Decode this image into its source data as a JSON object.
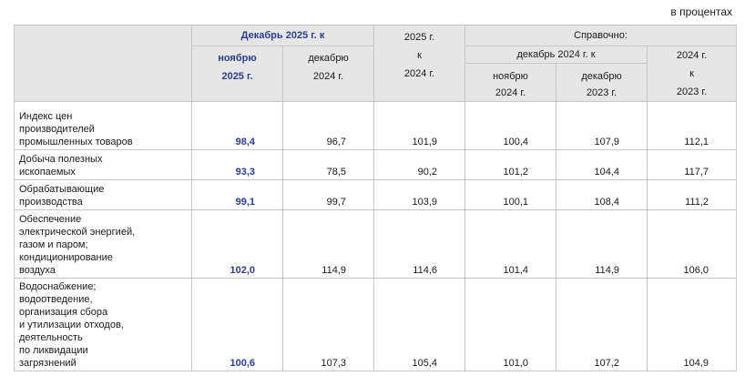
{
  "units_note": "в процентах",
  "header": {
    "group_dec2025": "Декабрь 2025 г. к",
    "col_nov2025": [
      "ноябрю",
      "2025 г."
    ],
    "col_dec2024": [
      "декабрю",
      "2024 г."
    ],
    "col_2025_vs_2024": [
      "2025 г.",
      "к",
      "2024 г."
    ],
    "group_ref": "Справочно:",
    "subgroup_dec2024": "декабрь 2024 г. к",
    "col_nov2024": [
      "ноябрю",
      "2024 г."
    ],
    "col_dec2023": [
      "декабрю",
      "2023 г."
    ],
    "col_2024_vs_2023": [
      "2024 г.",
      "к",
      "2023 г."
    ]
  },
  "rows": [
    {
      "label": [
        "Индекс цен",
        "производителей",
        "промышленных товаров"
      ],
      "values": [
        "98,4",
        "96,7",
        "101,9",
        "100,4",
        "107,9",
        "112,1"
      ]
    },
    {
      "label": [
        "Добыча полезных",
        "ископаемых"
      ],
      "values": [
        "93,3",
        "78,5",
        "90,2",
        "101,2",
        "104,4",
        "117,7"
      ]
    },
    {
      "label": [
        "Обрабатывающие",
        "производства"
      ],
      "values": [
        "99,1",
        "99,7",
        "103,9",
        "100,1",
        "108,4",
        "111,2"
      ]
    },
    {
      "label": [
        "Обеспечение",
        "электрической энергией,",
        "газом и паром;",
        "кондиционирование",
        "воздуха"
      ],
      "values": [
        "102,0",
        "114,9",
        "114,6",
        "101,4",
        "114,9",
        "106,0"
      ]
    },
    {
      "label": [
        "Водоснабжение;",
        "водоотведение,",
        "организация  сбора",
        "и утилизации отходов,",
        "деятельность",
        "по ликвидации",
        "загрязнений"
      ],
      "values": [
        "100,6",
        "107,3",
        "105,4",
        "101,0",
        "107,2",
        "104,9"
      ]
    }
  ]
}
